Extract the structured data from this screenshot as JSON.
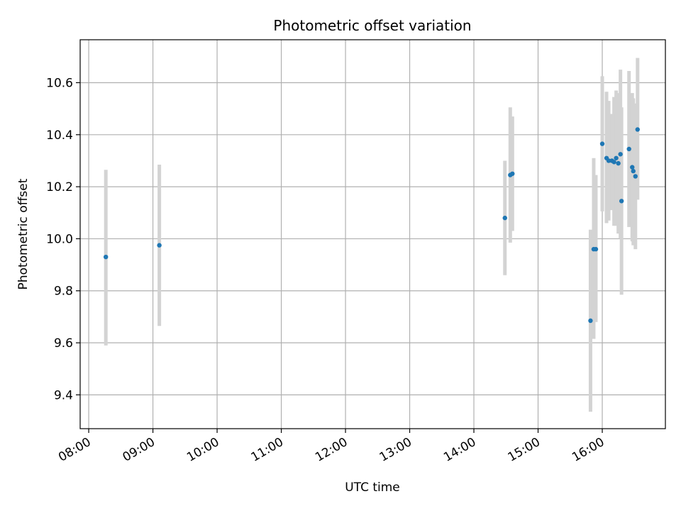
{
  "chart_data": {
    "type": "scatter",
    "title": "Photometric offset variation",
    "xlabel": "UTC time",
    "ylabel": "Photometric offset",
    "grid": true,
    "legend": "none",
    "colors": {
      "point": "#1f77b4",
      "errorbar": "#d3d3d3",
      "grid": "#b0b0b0",
      "axis": "#000000"
    },
    "x_tick_labels": [
      "08:00",
      "09:00",
      "10:00",
      "11:00",
      "12:00",
      "13:00",
      "14:00",
      "15:00",
      "16:00"
    ],
    "y_tick_labels": [
      "9.4",
      "9.6",
      "9.8",
      "10.0",
      "10.2",
      "10.4",
      "10.6"
    ],
    "xlim": [
      "07:52",
      "16:59"
    ],
    "ylim": [
      9.27,
      10.765
    ],
    "points": [
      {
        "x": "08:16",
        "y": 9.93,
        "ylow": 9.59,
        "yhigh": 10.265
      },
      {
        "x": "09:06",
        "y": 9.975,
        "ylow": 9.665,
        "yhigh": 10.285
      },
      {
        "x": "14:29",
        "y": 10.08,
        "ylow": 9.86,
        "yhigh": 10.3
      },
      {
        "x": "14:34",
        "y": 10.245,
        "ylow": 9.985,
        "yhigh": 10.505
      },
      {
        "x": "14:36",
        "y": 10.25,
        "ylow": 10.03,
        "yhigh": 10.47
      },
      {
        "x": "15:49",
        "y": 9.685,
        "ylow": 9.335,
        "yhigh": 10.035
      },
      {
        "x": "15:52",
        "y": 9.96,
        "ylow": 9.615,
        "yhigh": 10.31
      },
      {
        "x": "15:54",
        "y": 9.96,
        "ylow": 9.68,
        "yhigh": 10.245
      },
      {
        "x": "16:00",
        "y": 10.365,
        "ylow": 10.105,
        "yhigh": 10.625
      },
      {
        "x": "16:04",
        "y": 10.31,
        "ylow": 10.06,
        "yhigh": 10.565
      },
      {
        "x": "16:06",
        "y": 10.3,
        "ylow": 10.07,
        "yhigh": 10.53
      },
      {
        "x": "16:09",
        "y": 10.3,
        "ylow": 10.11,
        "yhigh": 10.48
      },
      {
        "x": "16:11",
        "y": 10.295,
        "ylow": 10.05,
        "yhigh": 10.545
      },
      {
        "x": "16:13",
        "y": 10.31,
        "ylow": 10.05,
        "yhigh": 10.57
      },
      {
        "x": "16:15",
        "y": 10.29,
        "ylow": 10.02,
        "yhigh": 10.56
      },
      {
        "x": "16:17",
        "y": 10.325,
        "ylow": 10.0,
        "yhigh": 10.65
      },
      {
        "x": "16:18",
        "y": 10.145,
        "ylow": 9.785,
        "yhigh": 10.505
      },
      {
        "x": "16:25",
        "y": 10.345,
        "ylow": 10.045,
        "yhigh": 10.645
      },
      {
        "x": "16:28",
        "y": 10.275,
        "ylow": 9.99,
        "yhigh": 10.56
      },
      {
        "x": "16:29",
        "y": 10.26,
        "ylow": 9.975,
        "yhigh": 10.54
      },
      {
        "x": "16:31",
        "y": 10.24,
        "ylow": 9.96,
        "yhigh": 10.52
      },
      {
        "x": "16:33",
        "y": 10.42,
        "ylow": 10.15,
        "yhigh": 10.695
      }
    ]
  }
}
